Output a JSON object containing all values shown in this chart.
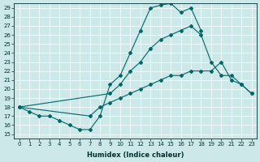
{
  "background_color": "#cce8e8",
  "line_color": "#006666",
  "grid_color": "#ffffff",
  "xlabel": "Humidex (Indice chaleur)",
  "xlim": [
    -0.5,
    23.5
  ],
  "ylim": [
    14.5,
    29.5
  ],
  "yticks": [
    15,
    16,
    17,
    18,
    19,
    20,
    21,
    22,
    23,
    24,
    25,
    26,
    27,
    28,
    29
  ],
  "xticks": [
    0,
    1,
    2,
    3,
    4,
    5,
    6,
    7,
    8,
    9,
    10,
    11,
    12,
    13,
    14,
    15,
    16,
    17,
    18,
    19,
    20,
    21,
    22,
    23
  ],
  "line1_x": [
    0,
    1,
    2,
    3,
    4,
    5,
    6,
    7,
    8,
    9,
    10,
    11,
    12,
    13,
    14,
    15,
    16,
    17,
    18
  ],
  "line1_y": [
    18.0,
    17.5,
    17.0,
    17.0,
    16.5,
    16.0,
    15.5,
    15.5,
    17.0,
    20.5,
    21.5,
    24.0,
    26.5,
    29.0,
    29.3,
    29.5,
    28.5,
    29.0,
    26.5
  ],
  "line2_x": [
    0,
    9,
    10,
    11,
    12,
    13,
    14,
    15,
    16,
    17,
    18,
    19,
    20,
    21,
    22,
    23
  ],
  "line2_y": [
    18.0,
    19.5,
    20.5,
    22.0,
    23.0,
    24.5,
    25.5,
    26.0,
    26.5,
    27.0,
    26.0,
    23.0,
    21.5,
    21.5,
    20.5,
    19.5
  ],
  "line3_x": [
    0,
    7,
    8,
    9,
    10,
    11,
    12,
    13,
    14,
    15,
    16,
    17,
    18,
    19,
    20,
    21,
    22,
    23
  ],
  "line3_y": [
    18.0,
    17.0,
    18.0,
    18.5,
    19.0,
    19.5,
    20.0,
    20.5,
    21.0,
    21.5,
    21.5,
    22.0,
    22.0,
    22.0,
    23.0,
    21.0,
    20.5,
    19.5
  ]
}
